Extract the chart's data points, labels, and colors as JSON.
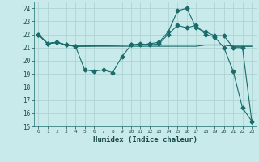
{
  "xlabel": "Humidex (Indice chaleur)",
  "bg_color": "#c8eaea",
  "grid_color": "#aacfcf",
  "line_color": "#1a6b6b",
  "xlim": [
    -0.5,
    23.5
  ],
  "ylim": [
    15,
    24.5
  ],
  "yticks": [
    15,
    16,
    17,
    18,
    19,
    20,
    21,
    22,
    23,
    24
  ],
  "xticks": [
    0,
    1,
    2,
    3,
    4,
    5,
    6,
    7,
    8,
    9,
    10,
    11,
    12,
    13,
    14,
    15,
    16,
    17,
    18,
    19,
    20,
    21,
    22,
    23
  ],
  "xtick_labels": [
    "0",
    "1",
    "2",
    "3",
    "4",
    "5",
    "6",
    "7",
    "8",
    "9",
    "10",
    "11",
    "12",
    "13",
    "14",
    "15",
    "16",
    "17",
    "18",
    "19",
    "20",
    "21",
    "22",
    "23"
  ],
  "series": [
    {
      "x": [
        0,
        1,
        2,
        3,
        4,
        10,
        11,
        12,
        13,
        14,
        15,
        16,
        17,
        18,
        19,
        20,
        21,
        22,
        23
      ],
      "y": [
        22,
        21.3,
        21.4,
        21.2,
        21.1,
        21.2,
        21.2,
        21.2,
        21.2,
        21.2,
        21.2,
        21.2,
        21.2,
        21.2,
        21.2,
        21.2,
        21.1,
        21.1,
        21.1
      ],
      "marker": false
    },
    {
      "x": [
        0,
        1,
        2,
        3,
        4,
        10,
        11,
        12,
        13,
        14,
        15,
        16,
        17,
        18,
        19,
        20,
        21,
        22,
        23
      ],
      "y": [
        22,
        21.3,
        21.4,
        21.2,
        21.1,
        21.1,
        21.1,
        21.1,
        21.1,
        21.1,
        21.1,
        21.1,
        21.1,
        21.2,
        21.2,
        21.2,
        21.1,
        21.1,
        21.1
      ],
      "marker": false
    },
    {
      "x": [
        0,
        1,
        2,
        3,
        4,
        5,
        6,
        7,
        8,
        9,
        10,
        11,
        12,
        13,
        14,
        15,
        16,
        17,
        18,
        19,
        20,
        21,
        22,
        23
      ],
      "y": [
        22,
        21.3,
        21.4,
        21.2,
        21.1,
        19.3,
        19.2,
        19.3,
        19.1,
        20.3,
        21.2,
        21.3,
        21.2,
        21.3,
        22.0,
        22.7,
        22.5,
        22.7,
        22.0,
        21.8,
        21.0,
        19.2,
        16.4,
        15.4
      ],
      "marker": true
    },
    {
      "x": [
        0,
        1,
        2,
        3,
        4,
        10,
        11,
        12,
        13,
        14,
        15,
        16,
        17,
        18,
        19,
        20,
        21,
        22,
        23
      ],
      "y": [
        22,
        21.3,
        21.4,
        21.2,
        21.1,
        21.2,
        21.2,
        21.3,
        21.4,
        22.2,
        23.8,
        24.0,
        22.5,
        22.2,
        21.9,
        21.9,
        21.0,
        21.0,
        15.4
      ],
      "marker": true
    }
  ]
}
